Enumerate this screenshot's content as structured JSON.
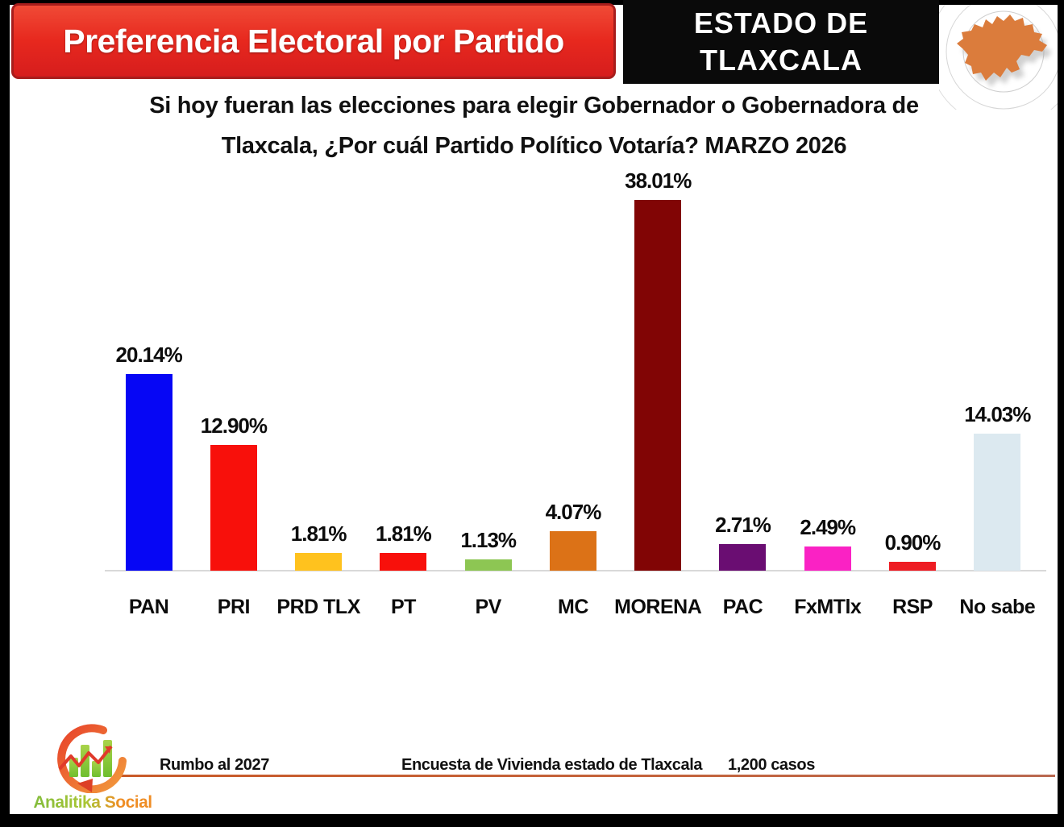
{
  "header": {
    "title": "Preferencia Electoral por Partido",
    "state_box": {
      "line1": "ESTADO DE",
      "line2": "TLAXCALA"
    }
  },
  "subtitle": "Si hoy fueran las elecciones para elegir Gobernador o Gobernadora de Tlaxcala, ¿Por cuál Partido Político Votaría? MARZO 2026",
  "chart_data": {
    "type": "bar",
    "title": "Preferencia Electoral por Partido",
    "categories": [
      "PAN",
      "PRI",
      "PRD TLX",
      "PT",
      "PV",
      "MC",
      "MORENA",
      "PAC",
      "FxMTlx",
      "RSP",
      "No sabe"
    ],
    "values": [
      20.14,
      12.9,
      1.81,
      1.81,
      1.13,
      4.07,
      38.01,
      2.71,
      2.49,
      0.9,
      14.03
    ],
    "value_labels": [
      "20.14%",
      "12.90%",
      "1.81%",
      "1.81%",
      "1.13%",
      "4.07%",
      "38.01%",
      "2.71%",
      "2.49%",
      "0.90%",
      "14.03%"
    ],
    "bar_colors": [
      "#0606f5",
      "#f8100b",
      "#ffc21e",
      "#f8100b",
      "#8dc653",
      "#dc7217",
      "#810505",
      "#6a0d72",
      "#fa22c4",
      "#ee1c23",
      "#dce9f0"
    ],
    "xlabel": "",
    "ylabel": "",
    "ylim": [
      0,
      40
    ],
    "grid": false,
    "legend": null,
    "value_label_position": "above-bar"
  },
  "footer": {
    "left": "Rumbo al 2027",
    "center": "Encuesta de Vivienda estado de Tlaxcala",
    "right": "1,200 casos",
    "logo_text": "Analitika Social"
  },
  "colors": {
    "banner_red": "#e7281e",
    "banner_border": "#a81d1c",
    "state_box_bg": "#0a0a0a",
    "map_orange": "#db7c3c",
    "axis_line": "#d9d9d9",
    "footer_rule": "#c95a28",
    "page_border": "#000000",
    "background": "#ffffff"
  }
}
